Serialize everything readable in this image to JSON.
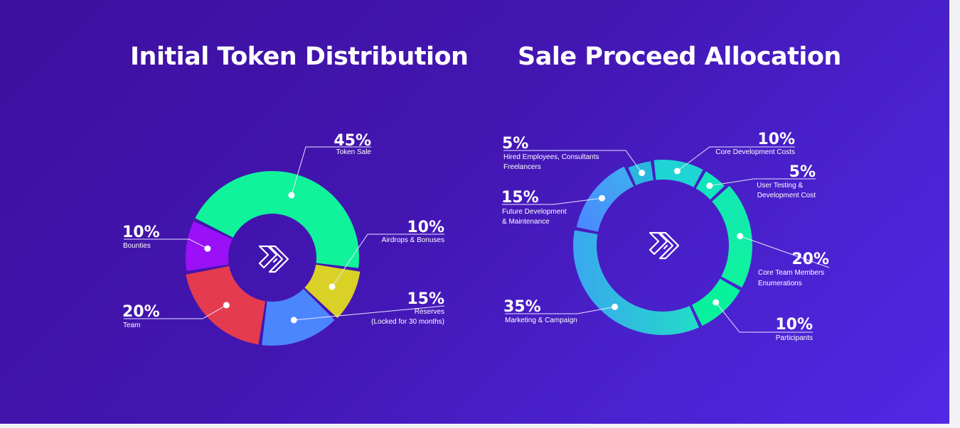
{
  "chart_data": [
    {
      "type": "pie",
      "title": "Initial Token Distribution",
      "slices": [
        {
          "label": "Token Sale",
          "pct_label": "45%",
          "value": 45,
          "color": "#10f39b"
        },
        {
          "label": "Airdrops & Bonuses",
          "pct_label": "10%",
          "value": 10,
          "color": "#d9d126"
        },
        {
          "label": "Reserves",
          "sub_label": "(Locked for 30 months)",
          "pct_label": "15%",
          "value": 15,
          "color": "#4c86ff"
        },
        {
          "label": "Team",
          "pct_label": "20%",
          "value": 20,
          "color": "#e53b4e"
        },
        {
          "label": "Bounties",
          "pct_label": "10%",
          "value": 10,
          "color": "#9a10f7"
        }
      ]
    },
    {
      "type": "pie",
      "title": "Sale Proceed Allocation",
      "slices": [
        {
          "label": "Core Development Costs",
          "pct_label": "10%",
          "value": 10,
          "color": "#1ed4d4"
        },
        {
          "label": "User Testing &",
          "sub_label": "Development Cost",
          "pct_label": "5%",
          "value": 5,
          "color": "#12e4bc"
        },
        {
          "label": "Core Team Members",
          "sub_label": "Enumerations",
          "pct_label": "20%",
          "value": 20,
          "color": "#16f0a2"
        },
        {
          "label": "Participants",
          "pct_label": "10%",
          "value": 10,
          "color": "#08f29e"
        },
        {
          "label": "Marketing & Campaign",
          "pct_label": "35%",
          "value": 35,
          "color": "#2ad0d2"
        },
        {
          "label": "Future Development",
          "sub_label": "& Maintenance",
          "pct_label": "15%",
          "value": 15,
          "color": "#4a94ff"
        },
        {
          "label": "Hired Employees, Consultants",
          "sub_label": "Freelancers",
          "pct_label": "5%",
          "value": 5,
          "color": "#2ab8e0"
        }
      ]
    }
  ]
}
